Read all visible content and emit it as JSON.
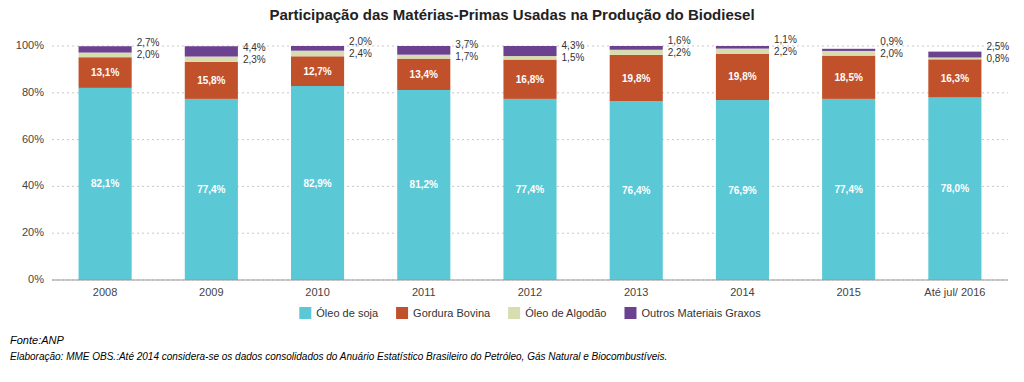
{
  "chart_data": {
    "type": "bar",
    "stacked": true,
    "title": "Participação das Matérias-Primas Usadas na Produção do Biodiesel",
    "categories": [
      "2008",
      "2009",
      "2010",
      "2011",
      "2012",
      "2013",
      "2014",
      "2015",
      "Até jul/ 2016"
    ],
    "series": [
      {
        "name": "Óleo de soja",
        "color": "#5BC8D5",
        "values": [
          82.1,
          77.4,
          82.9,
          81.2,
          77.4,
          76.4,
          76.9,
          77.4,
          78.0
        ],
        "value_labels": [
          "82,1%",
          "77,4%",
          "82,9%",
          "81,2%",
          "77,4%",
          "76,4%",
          "76,9%",
          "77,4%",
          "78,0%"
        ]
      },
      {
        "name": "Gordura Bovina",
        "color": "#C0512A",
        "values": [
          13.1,
          15.8,
          12.7,
          13.4,
          16.8,
          19.8,
          19.8,
          18.5,
          16.3
        ],
        "value_labels": [
          "13,1%",
          "15,8%",
          "12,7%",
          "13,4%",
          "16,8%",
          "19,8%",
          "19,8%",
          "18,5%",
          "16,3%"
        ]
      },
      {
        "name": "Óleo de Algodão",
        "color": "#D8DDB0",
        "values": [
          2.0,
          2.3,
          2.4,
          1.7,
          1.5,
          2.2,
          2.2,
          2.0,
          0.8
        ],
        "value_labels": [
          "2,0%",
          "2,3%",
          "2,4%",
          "1,7%",
          "1,5%",
          "2,2%",
          "2,2%",
          "2,0%",
          "0,8%"
        ]
      },
      {
        "name": "Outros Materiais Graxos",
        "color": "#6B4190",
        "values": [
          2.7,
          4.4,
          2.0,
          3.7,
          4.3,
          1.6,
          1.1,
          0.9,
          2.5
        ],
        "value_labels": [
          "2,7%",
          "4,4%",
          "2,0%",
          "3,7%",
          "4,3%",
          "1,6%",
          "1,1%",
          "0,9%",
          "2,5%"
        ]
      }
    ],
    "ylim": [
      0,
      100
    ],
    "yticks": [
      {
        "value": 0,
        "label": "0%"
      },
      {
        "value": 20,
        "label": "20%"
      },
      {
        "value": 40,
        "label": "40%"
      },
      {
        "value": 60,
        "label": "60%"
      },
      {
        "value": 80,
        "label": "80%"
      },
      {
        "value": 100,
        "label": "100%"
      }
    ],
    "grid": true,
    "legend": "bottom",
    "data_labels": true,
    "annotations": [
      "Fonte:ANP",
      "Elaboração: MME  OBS.:Até 2014 considera-se os dados consolidados do Anuário Estatístico Brasileiro do Petróleo, Gás Natural e Biocombustíveis."
    ]
  }
}
